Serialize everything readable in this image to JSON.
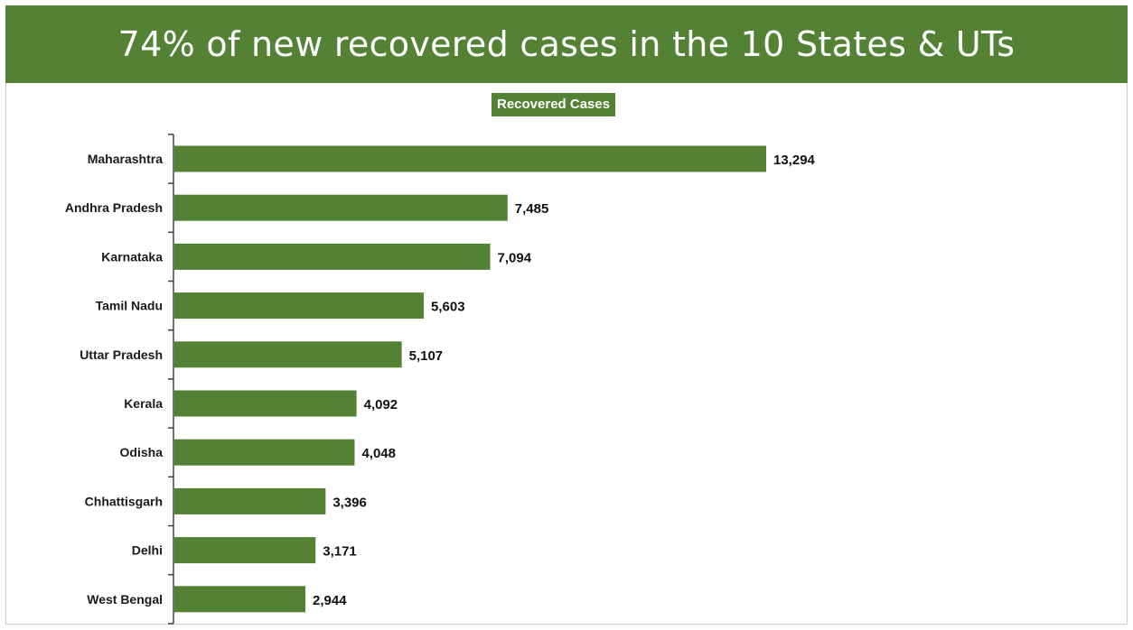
{
  "title": "74% of new recovered cases in the 10 States & UTs",
  "chart_data": {
    "type": "bar",
    "orientation": "horizontal",
    "categories": [
      "Maharashtra",
      "Andhra Pradesh",
      "Karnataka",
      "Tamil Nadu",
      "Uttar Pradesh",
      "Kerala",
      "Odisha",
      "Chhattisgarh",
      "Delhi",
      "West Bengal"
    ],
    "series": [
      {
        "name": "Recovered Cases",
        "values": [
          13294,
          7485,
          7094,
          5603,
          5107,
          4092,
          4048,
          3396,
          3171,
          2944
        ]
      }
    ],
    "value_labels": [
      "13,294",
      "7,485",
      "7,094",
      "5,603",
      "5,107",
      "4,092",
      "4,048",
      "3,396",
      "3,171",
      "2,944"
    ],
    "xlim": [
      0,
      13294
    ],
    "grid": false,
    "legend": "top-center",
    "bar_color": "#548235"
  }
}
